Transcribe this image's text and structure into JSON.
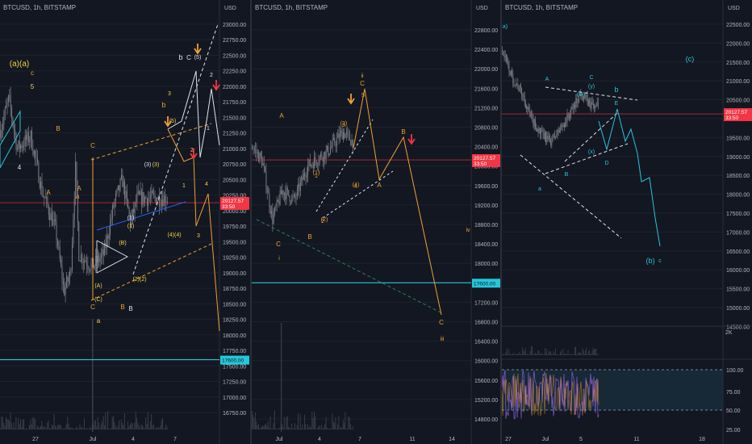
{
  "colors": {
    "background": "#131722",
    "divider": "#2a2e39",
    "grid": "#1e222d",
    "candle": "#7d7f86",
    "axis_text": "#b2b5be",
    "price_line": "#f23645",
    "price_badge": "#f23645",
    "cyan": "#26c6da",
    "orange": "#f0a030",
    "yellow": "#f5d142",
    "white": "#e0e3eb",
    "red_arrow": "#f23645",
    "dashed_white": "#d1d4dc",
    "rsi_line": "#7e57c2"
  },
  "chart_data": [
    {
      "type": "candlestick",
      "title": "BTCUSD, 1h, BITSTAMP",
      "currency_label": "USD",
      "ylim": [
        16500,
        23300
      ],
      "y_ticks": [
        "23000.00",
        "22750.00",
        "22500.00",
        "22250.00",
        "22000.00",
        "21750.00",
        "21500.00",
        "21250.00",
        "21000.00",
        "20750.00",
        "20500.00",
        "20250.00",
        "20000.00",
        "19750.00",
        "19500.00",
        "19250.00",
        "19000.00",
        "18750.00",
        "18500.00",
        "18250.00",
        "18000.00",
        "17750.00",
        "17500.00",
        "17250.00",
        "17000.00",
        "16750.00"
      ],
      "x_ticks": [
        "27",
        "Jul",
        "4",
        "7"
      ],
      "current_price": 20127.57,
      "price_badge": [
        "20127.57",
        "33:50"
      ],
      "level_badge": "17600.00",
      "level": 17600,
      "wave_labels": [
        "(a)(a)",
        "c",
        "5",
        "4",
        "B",
        "A",
        "A",
        "a",
        "a",
        "C",
        "C",
        "B",
        "B",
        "(A)",
        "(B)",
        "(C)",
        "(1)",
        "(1)",
        "(2)(2)",
        "(3)",
        "(3)",
        "(4)(4)",
        "(5)",
        "b",
        "b",
        "C",
        "(5)",
        "2",
        "1",
        "2",
        "1",
        "4",
        "3",
        "3"
      ]
    },
    {
      "type": "candlestick",
      "title": "BTCUSD, 1h, BITSTAMP",
      "currency_label": "USD",
      "ylim": [
        14700,
        23100
      ],
      "y_ticks": [
        "22800.00",
        "22400.00",
        "22000.00",
        "21600.00",
        "21200.00",
        "20800.00",
        "20400.00",
        "20000.00",
        "19600.00",
        "19200.00",
        "18800.00",
        "18400.00",
        "18000.00",
        "17600.00",
        "17200.00",
        "16800.00",
        "16400.00",
        "16000.00",
        "15600.00",
        "15200.00",
        "14800.00"
      ],
      "x_ticks": [
        "Jul",
        "4",
        "7",
        "11",
        "14"
      ],
      "current_price": 20127.57,
      "price_badge": [
        "20127.57",
        "33:50"
      ],
      "level_badge": "17600.00",
      "level": 17600,
      "wave_labels": [
        "A",
        "C",
        "i",
        "B",
        "1",
        "2",
        "3",
        "4",
        "5",
        "(1)",
        "(2)",
        "(3)",
        "(4)",
        "A",
        "ii",
        "C",
        "B",
        "iv",
        "C",
        "iii"
      ]
    },
    {
      "type": "candlestick",
      "title": "BTCUSD, 1h, BITSTAMP",
      "currency_label": "USD",
      "ylim": [
        14300,
        23000
      ],
      "y_ticks": [
        "22500.00",
        "22000.00",
        "21500.00",
        "21000.00",
        "20500.00",
        "20000.00",
        "19500.00",
        "19000.00",
        "18500.00",
        "18000.00",
        "17500.00",
        "17000.00",
        "16500.00",
        "16000.00",
        "15500.00",
        "15000.00",
        "14500.00"
      ],
      "x_ticks": [
        "27",
        "Jul",
        "5",
        "11",
        "18"
      ],
      "current_price": 20127.57,
      "price_badge": [
        "20127.57",
        "33:50"
      ],
      "wave_labels": [
        "a)",
        "A",
        "C",
        "(w)",
        "(y)",
        "E",
        "b",
        "(x)",
        "B",
        "D",
        "a",
        "(b)",
        "c",
        "(c)"
      ],
      "volume_label": "2K",
      "rsi": {
        "levels": [
          "100.00",
          "75.00",
          "50.00",
          "25.00"
        ],
        "upper": 75,
        "lower": 25
      }
    }
  ]
}
